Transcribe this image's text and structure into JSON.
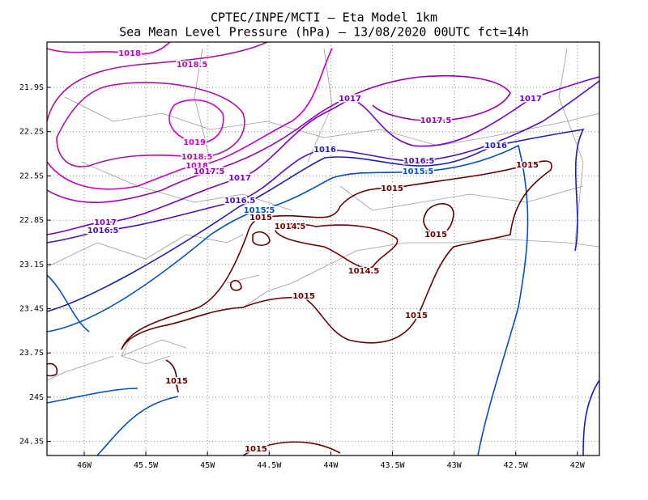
{
  "header": {
    "title": "CPTEC/INPE/MCTI –  Eta Model 1km",
    "subtitle": "Sea Mean Level Pressure (hPa) – 13/08/2020 00UTC fct=14h"
  },
  "map": {
    "lat_labels": [
      "21.9S",
      "22.2S",
      "22.5S",
      "22.8S",
      "23.1S",
      "23.4S",
      "23.7S",
      "24S",
      "24.3S"
    ],
    "lon_labels": [
      "46W",
      "45.5W",
      "45W",
      "44.5W",
      "44W",
      "43.5W",
      "43W",
      "42.5W",
      "42W"
    ],
    "contour_labels": [
      {
        "text": "1018",
        "color": "#c800c8"
      },
      {
        "text": "1018.5",
        "color": "#b0149c"
      },
      {
        "text": "1017",
        "color": "#7800c8"
      },
      {
        "text": "1017",
        "color": "#7800c8"
      },
      {
        "text": "1017.5",
        "color": "#9a00b0"
      },
      {
        "text": "1016",
        "color": "#1e1eb4"
      },
      {
        "text": "1016",
        "color": "#1e1eb4"
      },
      {
        "text": "1016.5",
        "color": "#4a10c0"
      },
      {
        "text": "1015.5",
        "color": "#0050c0"
      },
      {
        "text": "1015",
        "color": "#640000"
      },
      {
        "text": "1015",
        "color": "#640000"
      },
      {
        "text": "1016.5",
        "color": "#4a10c0"
      },
      {
        "text": "1015.5",
        "color": "#0050c0"
      },
      {
        "text": "1015",
        "color": "#640000"
      },
      {
        "text": "1019",
        "color": "#cc00cc"
      },
      {
        "text": "1018.5",
        "color": "#b0149c"
      },
      {
        "text": "1018",
        "color": "#c800c8"
      },
      {
        "text": "1017.5",
        "color": "#9a00b0"
      },
      {
        "text": "1017",
        "color": "#7800c8"
      },
      {
        "text": "1017",
        "color": "#7800c8"
      },
      {
        "text": "1016.5",
        "color": "#4a10c0"
      },
      {
        "text": "1014.5",
        "color": "#780000"
      },
      {
        "text": "1015",
        "color": "#640000"
      },
      {
        "text": "1014.5",
        "color": "#780000"
      },
      {
        "text": "1015",
        "color": "#640000"
      },
      {
        "text": "1015",
        "color": "#640000"
      },
      {
        "text": "1015",
        "color": "#640000"
      },
      {
        "text": "1015",
        "color": "#640000"
      }
    ]
  }
}
